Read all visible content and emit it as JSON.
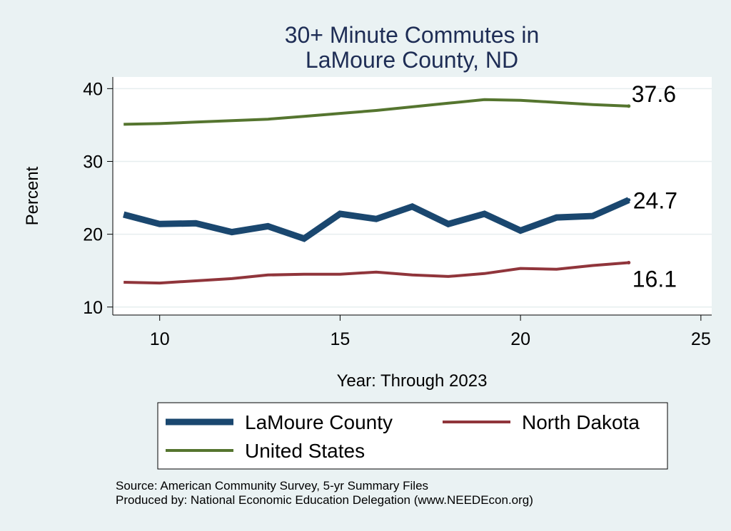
{
  "chart_data": {
    "type": "line",
    "title": [
      "30+ Minute Commutes in",
      "LaMoure County, ND"
    ],
    "xlabel": "Year: Through 2023",
    "ylabel": "Percent",
    "xlim": [
      8.7,
      25.3
    ],
    "ylim": [
      8.9,
      41.6
    ],
    "xticks": [
      10,
      15,
      20,
      25
    ],
    "yticks": [
      10,
      20,
      30,
      40
    ],
    "grid": true,
    "legend_position": "bottom",
    "x": [
      9,
      10,
      11,
      12,
      13,
      14,
      15,
      16,
      17,
      18,
      19,
      20,
      21,
      22,
      23
    ],
    "series": [
      {
        "name": "LaMoure County",
        "color": "#1a476f",
        "width": 9,
        "values": [
          22.7,
          21.4,
          21.5,
          20.3,
          21.1,
          19.4,
          22.8,
          22.1,
          23.8,
          21.4,
          22.8,
          20.5,
          22.3,
          22.5,
          24.7
        ],
        "end_label": "24.7"
      },
      {
        "name": "North Dakota",
        "color": "#90353b",
        "width": 4,
        "values": [
          13.4,
          13.3,
          13.6,
          13.9,
          14.4,
          14.5,
          14.5,
          14.8,
          14.4,
          14.2,
          14.6,
          15.3,
          15.2,
          15.7,
          16.1
        ],
        "end_label": "16.1"
      },
      {
        "name": "United States",
        "color": "#55752f",
        "width": 4,
        "values": [
          35.1,
          35.2,
          35.4,
          35.6,
          35.8,
          36.2,
          36.6,
          37.0,
          37.5,
          38.0,
          38.5,
          38.4,
          38.1,
          37.8,
          37.6
        ],
        "end_label": "37.6"
      }
    ]
  },
  "notes": {
    "source": "Source: American Community Survey, 5-yr Summary Files",
    "producer": "Produced by: National Economic Education Delegation (www.NEEDEcon.org)"
  }
}
